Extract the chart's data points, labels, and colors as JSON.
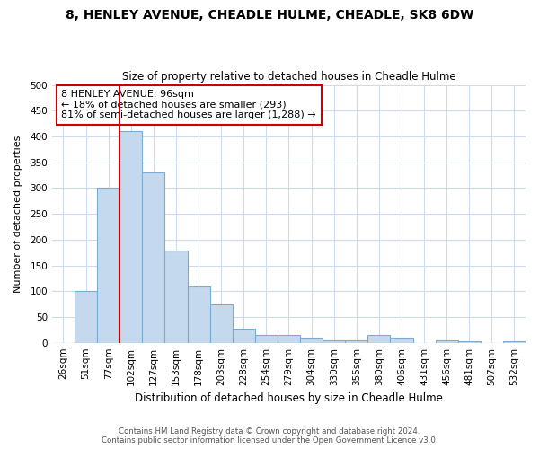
{
  "title": "8, HENLEY AVENUE, CHEADLE HULME, CHEADLE, SK8 6DW",
  "subtitle": "Size of property relative to detached houses in Cheadle Hulme",
  "xlabel": "Distribution of detached houses by size in Cheadle Hulme",
  "ylabel": "Number of detached properties",
  "bar_labels": [
    "26sqm",
    "51sqm",
    "77sqm",
    "102sqm",
    "127sqm",
    "153sqm",
    "178sqm",
    "203sqm",
    "228sqm",
    "254sqm",
    "279sqm",
    "304sqm",
    "330sqm",
    "355sqm",
    "380sqm",
    "406sqm",
    "431sqm",
    "456sqm",
    "481sqm",
    "507sqm",
    "532sqm"
  ],
  "bar_values": [
    0,
    100,
    300,
    410,
    330,
    178,
    110,
    75,
    28,
    15,
    15,
    10,
    5,
    5,
    15,
    10,
    0,
    5,
    3,
    0,
    3
  ],
  "bar_color": "#c5d9ee",
  "bar_edge_color": "#7aadd4",
  "ylim": [
    0,
    500
  ],
  "yticks": [
    0,
    50,
    100,
    150,
    200,
    250,
    300,
    350,
    400,
    450,
    500
  ],
  "vline_color": "#cc0000",
  "vline_at_index": 3,
  "annotation_title": "8 HENLEY AVENUE: 96sqm",
  "annotation_line1": "← 18% of detached houses are smaller (293)",
  "annotation_line2": "81% of semi-detached houses are larger (1,288) →",
  "annotation_box_color": "#ffffff",
  "annotation_box_edge": "#cc0000",
  "footer_line1": "Contains HM Land Registry data © Crown copyright and database right 2024.",
  "footer_line2": "Contains public sector information licensed under the Open Government Licence v3.0.",
  "background_color": "#ffffff",
  "grid_color": "#ccdcee"
}
